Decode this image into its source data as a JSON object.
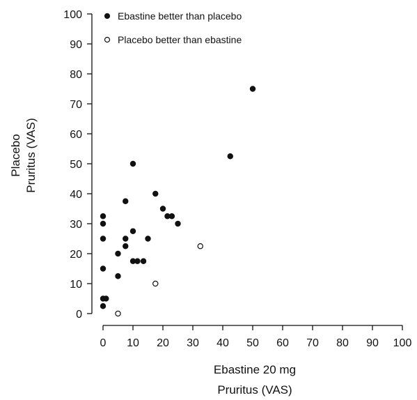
{
  "chart_data": {
    "type": "scatter",
    "xlabel_line1": "Ebastine 20 mg",
    "xlabel_line2": "Pruritus (VAS)",
    "ylabel_line1": "Placebo",
    "ylabel_line2": "Pruritus (VAS)",
    "xlim": [
      0,
      100
    ],
    "ylim": [
      0,
      100
    ],
    "xticks": [
      "0",
      "10",
      "20",
      "30",
      "40",
      "50",
      "60",
      "70",
      "80",
      "90",
      "100"
    ],
    "yticks": [
      "0",
      "10",
      "20",
      "30",
      "40",
      "50",
      "60",
      "70",
      "80",
      "90",
      "100"
    ],
    "grid": false,
    "legend_placement": "top-left",
    "series": [
      {
        "name": "Ebastine better than placebo",
        "marker": "filled",
        "color": "#111111",
        "points": [
          [
            0,
            5
          ],
          [
            1,
            5
          ],
          [
            0,
            2.5
          ],
          [
            0,
            15
          ],
          [
            0,
            25
          ],
          [
            0,
            30
          ],
          [
            0,
            32.5
          ],
          [
            5,
            12.5
          ],
          [
            5,
            20
          ],
          [
            7.5,
            22.5
          ],
          [
            7.5,
            25
          ],
          [
            7.5,
            37.5
          ],
          [
            10,
            17.5
          ],
          [
            10,
            27.5
          ],
          [
            10,
            50
          ],
          [
            11.5,
            17.5
          ],
          [
            13.5,
            17.5
          ],
          [
            15,
            25
          ],
          [
            17.5,
            40
          ],
          [
            20,
            35
          ],
          [
            21.5,
            32.5
          ],
          [
            23,
            32.5
          ],
          [
            25,
            30
          ],
          [
            42.5,
            52.5
          ],
          [
            50,
            75
          ]
        ]
      },
      {
        "name": "Placebo better than ebastine",
        "marker": "open",
        "color": "#111111",
        "points": [
          [
            5,
            0
          ],
          [
            17.5,
            10
          ],
          [
            32.5,
            22.5
          ]
        ]
      }
    ]
  }
}
